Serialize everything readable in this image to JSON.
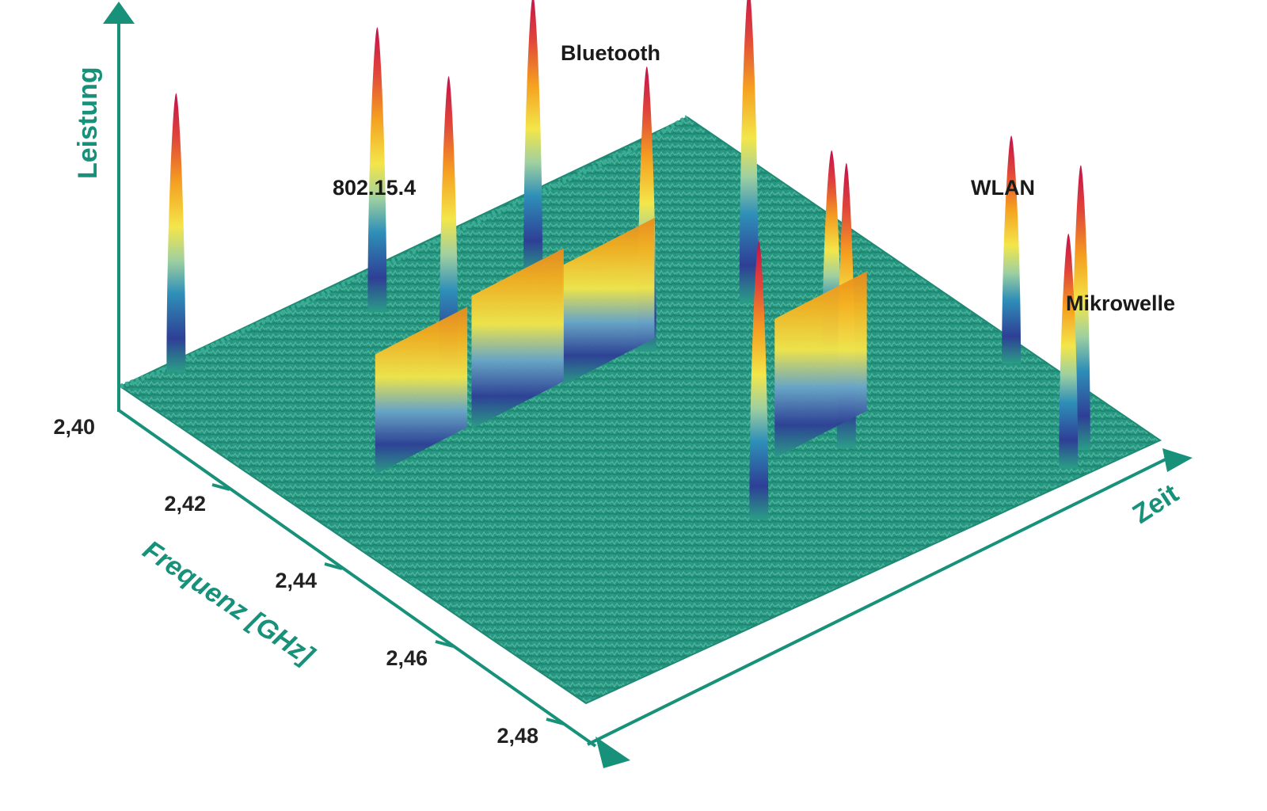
{
  "chart_data": {
    "type": "3d-surface",
    "z_axis_label": "Leistung",
    "x_axis_label": "Frequenz [GHz]",
    "time_axis_label": "Zeit",
    "frequency_ticks": [
      "2,40",
      "2,42",
      "2,44",
      "2,46",
      "2,48"
    ],
    "frequency_range": [
      2.4,
      2.49
    ],
    "annotations": [
      "Bluetooth",
      "802.15.4",
      "WLAN",
      "Mikrowelle"
    ],
    "colors": {
      "axis": "#17917a",
      "surface_base": "#2a9e86",
      "ramp": [
        "#2e3f96",
        "#2e8fb8",
        "#9fd0a0",
        "#f3e64a",
        "#f5a020",
        "#e0463a",
        "#c4104a"
      ]
    },
    "signals": [
      {
        "type": "Bluetooth",
        "freq": 2.402,
        "t": 0.08,
        "level": 0.88
      },
      {
        "type": "Bluetooth",
        "freq": 2.408,
        "t": 0.38,
        "level": 0.9
      },
      {
        "type": "Bluetooth",
        "freq": 2.414,
        "t": 0.6,
        "level": 0.88
      },
      {
        "type": "Bluetooth",
        "freq": 2.424,
        "t": 0.36,
        "level": 0.94
      },
      {
        "type": "Bluetooth",
        "freq": 2.436,
        "t": 0.78,
        "level": 1.0
      },
      {
        "type": "Bluetooth",
        "freq": 2.436,
        "t": 0.6,
        "level": 0.9
      },
      {
        "type": "Bluetooth",
        "freq": 2.452,
        "t": 0.78,
        "level": 0.66
      },
      {
        "type": "Bluetooth",
        "freq": 2.467,
        "t": 0.96,
        "level": 0.72
      },
      {
        "type": "Bluetooth",
        "freq": 2.468,
        "t": 0.66,
        "level": 0.9
      },
      {
        "type": "Bluetooth",
        "freq": 2.487,
        "t": 0.9,
        "level": 0.9
      },
      {
        "type": "Bluetooth",
        "freq": 2.489,
        "t": 0.86,
        "level": 0.74
      },
      {
        "type": "Bluetooth",
        "freq": 2.473,
        "t": 0.46,
        "level": 0.88
      },
      {
        "type": "802.15.4",
        "freq": 2.435,
        "t": 0.13,
        "level": 0.38
      },
      {
        "type": "802.15.4",
        "freq": 2.435,
        "t": 0.3,
        "level": 0.42
      },
      {
        "type": "802.15.4",
        "freq": 2.435,
        "t": 0.46,
        "level": 0.38
      },
      {
        "type": "802.15.4",
        "freq": 2.464,
        "t": 0.57,
        "level": 0.44
      }
    ]
  }
}
